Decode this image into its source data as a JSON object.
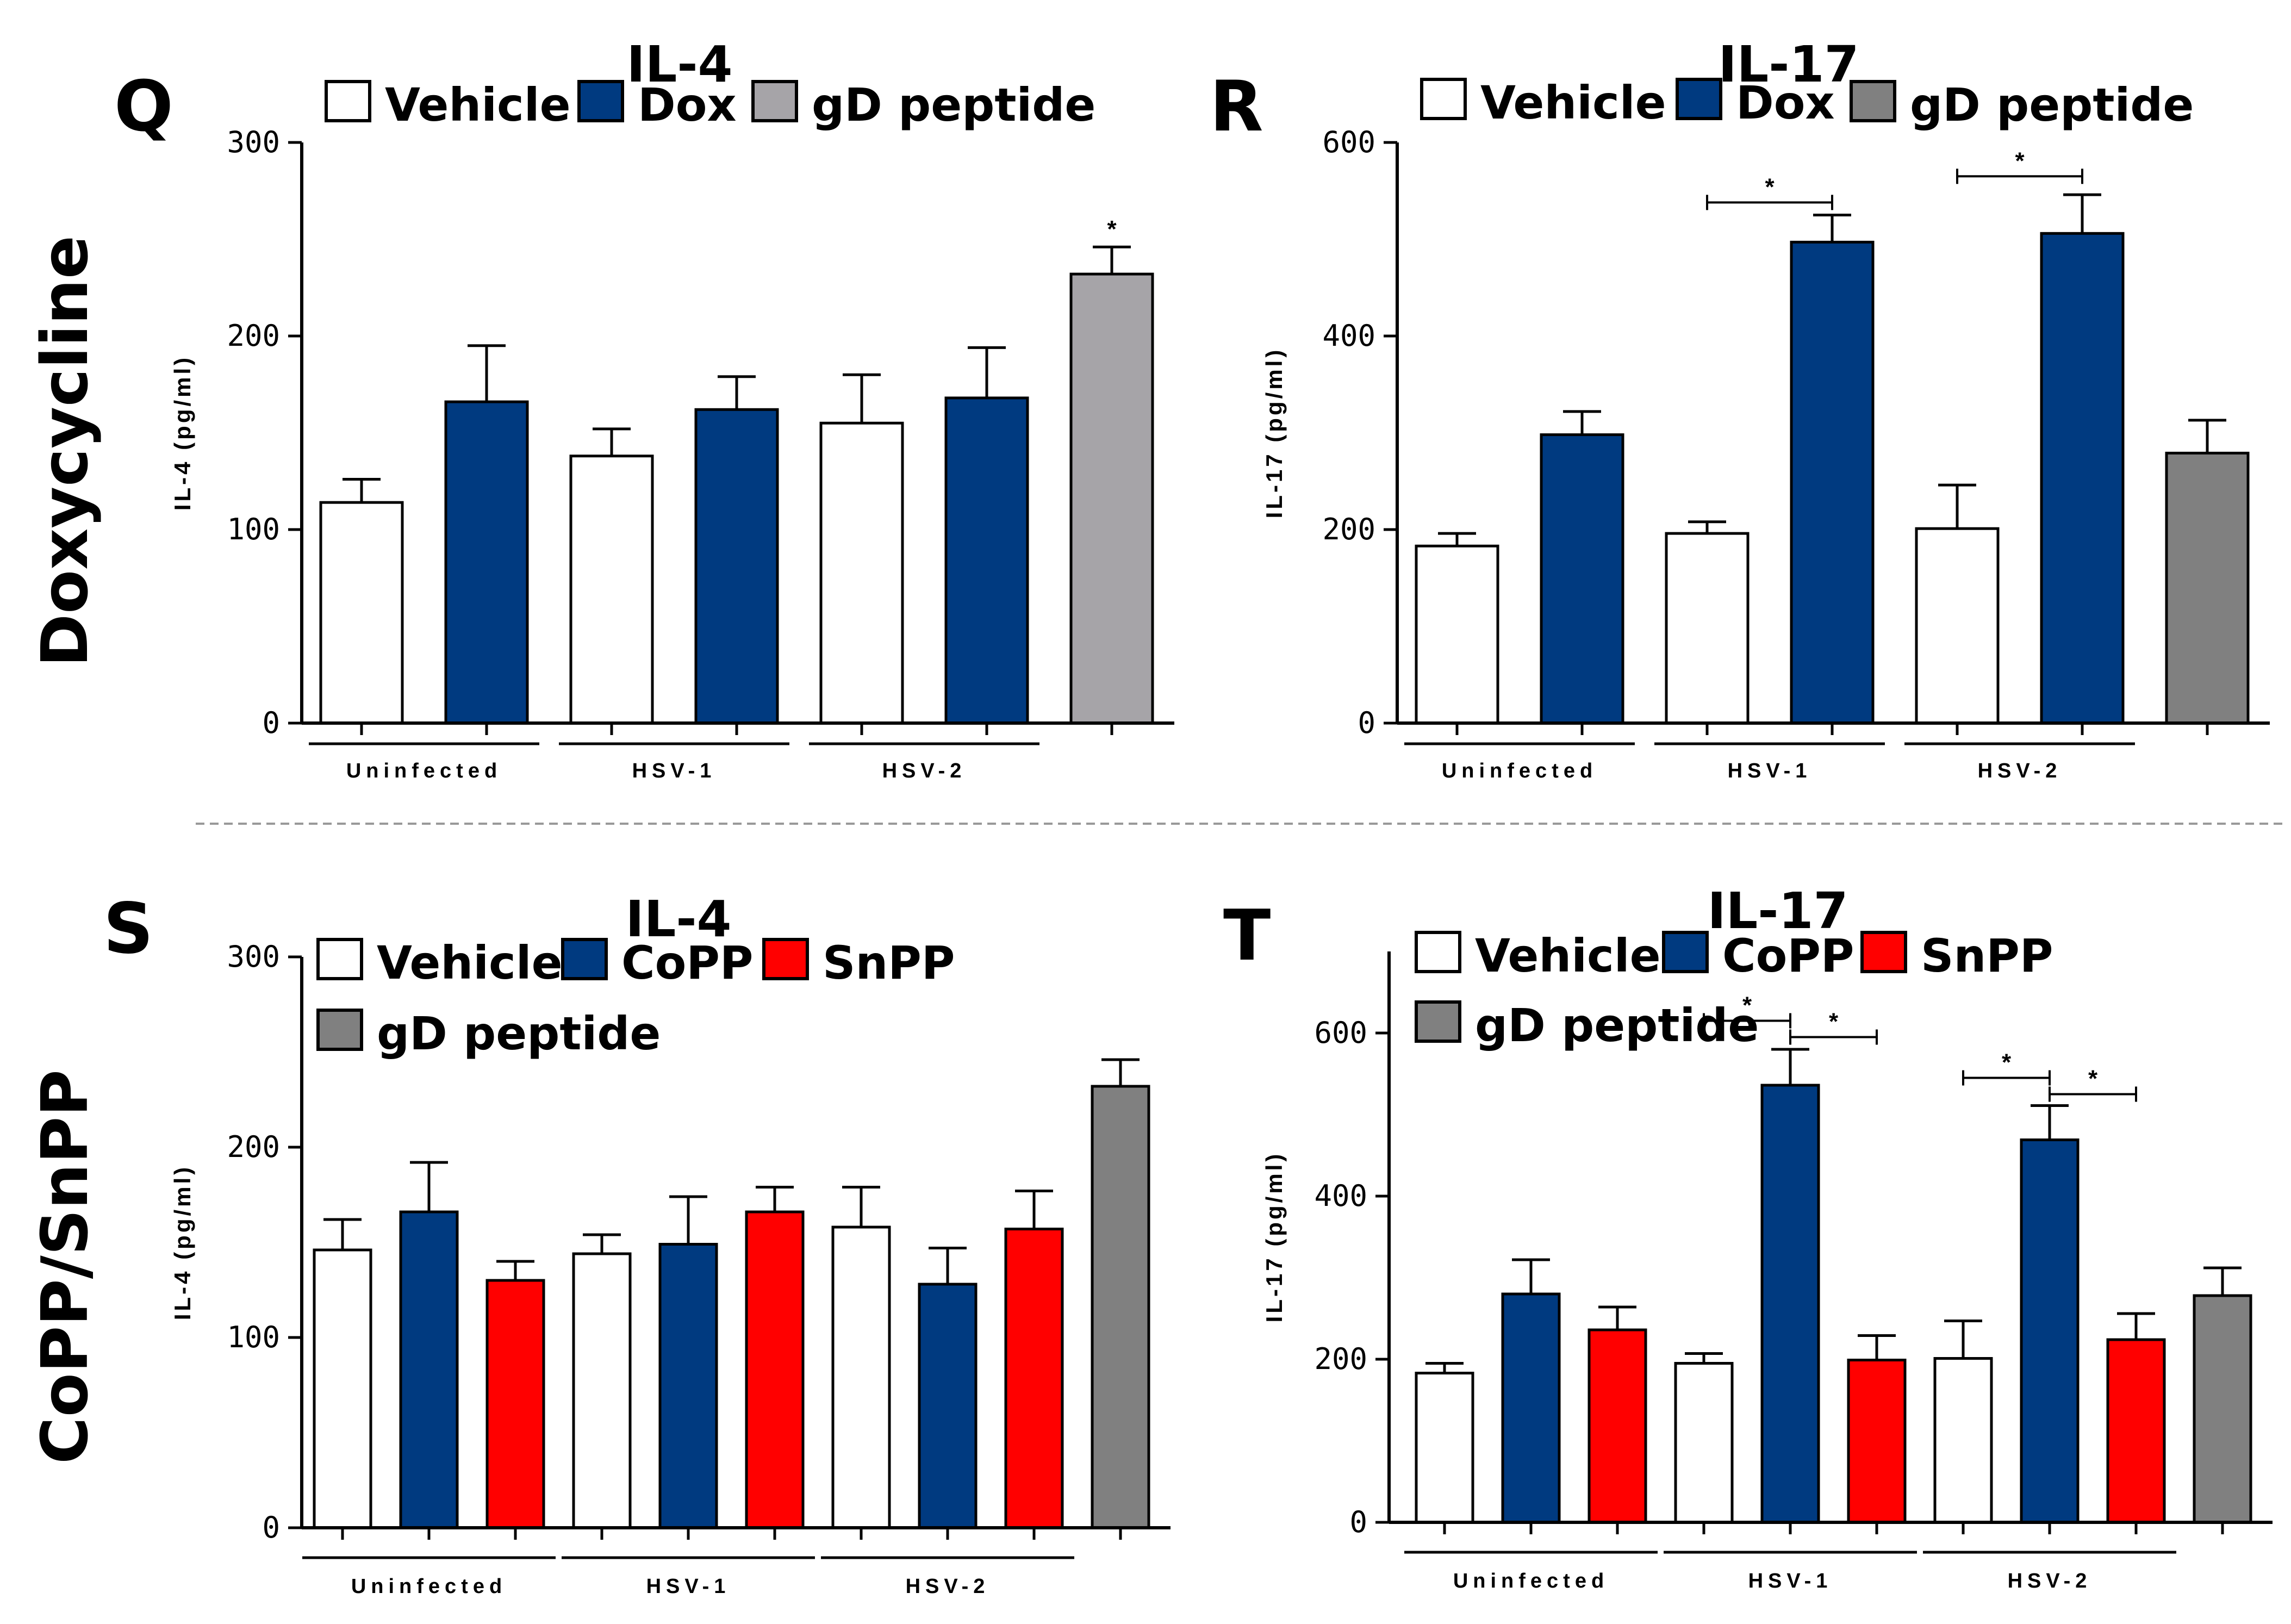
{
  "figure": {
    "row_labels": [
      "Doxycycline",
      "CoPP/SnPP"
    ]
  },
  "colors": {
    "Vehicle": "#ffffff",
    "Dox": "#003a80",
    "CoPP": "#003a80",
    "SnPP": "#ff0000",
    "gD peptide Q": "#a6a4a8",
    "gD peptide": "#808080"
  },
  "chart_data": [
    {
      "panel": "Q",
      "type": "bar",
      "title": "IL-4",
      "ylabel": "IL-4 (pg/ml)",
      "ylim": [
        0,
        300
      ],
      "yticks": [
        0,
        100,
        200,
        300
      ],
      "legend": [
        "Vehicle",
        "Dox",
        "gD peptide"
      ],
      "groups": [
        {
          "label": "Uninfected",
          "bars": [
            {
              "series": "Vehicle",
              "value": 114,
              "error": 12
            },
            {
              "series": "Dox",
              "value": 166,
              "error": 29
            }
          ]
        },
        {
          "label": "HSV-1",
          "bars": [
            {
              "series": "Vehicle",
              "value": 138,
              "error": 14
            },
            {
              "series": "Dox",
              "value": 162,
              "error": 17
            }
          ]
        },
        {
          "label": "HSV-2",
          "bars": [
            {
              "series": "Vehicle",
              "value": 155,
              "error": 25
            },
            {
              "series": "Dox",
              "value": 168,
              "error": 26
            }
          ]
        },
        {
          "label": "",
          "bars": [
            {
              "series": "gD peptide Q",
              "value": 232,
              "error": 14,
              "star": true
            }
          ]
        }
      ],
      "significance": []
    },
    {
      "panel": "R",
      "type": "bar",
      "title": "IL-17",
      "ylabel": "IL-17 (pg/ml)",
      "ylim": [
        0,
        600
      ],
      "yticks": [
        0,
        200,
        400,
        600
      ],
      "legend": [
        "Vehicle",
        "Dox",
        "gD peptide"
      ],
      "groups": [
        {
          "label": "Uninfected",
          "bars": [
            {
              "series": "Vehicle",
              "value": 183,
              "error": 13
            },
            {
              "series": "Dox",
              "value": 298,
              "error": 24
            }
          ]
        },
        {
          "label": "HSV-1",
          "bars": [
            {
              "series": "Vehicle",
              "value": 196,
              "error": 12
            },
            {
              "series": "Dox",
              "value": 497,
              "error": 28
            }
          ]
        },
        {
          "label": "HSV-2",
          "bars": [
            {
              "series": "Vehicle",
              "value": 201,
              "error": 45
            },
            {
              "series": "Dox",
              "value": 506,
              "error": 40
            }
          ]
        },
        {
          "label": "",
          "bars": [
            {
              "series": "gD peptide",
              "value": 279,
              "error": 34
            }
          ]
        }
      ],
      "significance": [
        {
          "from": [
            1,
            0
          ],
          "to": [
            1,
            1
          ],
          "level": 538,
          "text": "*"
        },
        {
          "from": [
            2,
            0
          ],
          "to": [
            2,
            1
          ],
          "level": 565,
          "text": "*"
        }
      ]
    },
    {
      "panel": "S",
      "type": "bar",
      "title": "IL-4",
      "ylabel": "IL-4 (pg/ml)",
      "ylim": [
        0,
        300
      ],
      "yticks": [
        0,
        100,
        200,
        300
      ],
      "legend": [
        "Vehicle",
        "CoPP",
        "SnPP",
        "gD peptide"
      ],
      "groups": [
        {
          "label": "Uninfected",
          "bars": [
            {
              "series": "Vehicle",
              "value": 146,
              "error": 16
            },
            {
              "series": "CoPP",
              "value": 166,
              "error": 26
            },
            {
              "series": "SnPP",
              "value": 130,
              "error": 10
            }
          ]
        },
        {
          "label": "HSV-1",
          "bars": [
            {
              "series": "Vehicle",
              "value": 144,
              "error": 10
            },
            {
              "series": "CoPP",
              "value": 149,
              "error": 25
            },
            {
              "series": "SnPP",
              "value": 166,
              "error": 13
            }
          ]
        },
        {
          "label": "HSV-2",
          "bars": [
            {
              "series": "Vehicle",
              "value": 158,
              "error": 21
            },
            {
              "series": "CoPP",
              "value": 128,
              "error": 19
            },
            {
              "series": "SnPP",
              "value": 157,
              "error": 20
            }
          ]
        },
        {
          "label": "",
          "bars": [
            {
              "series": "gD peptide",
              "value": 232,
              "error": 14
            }
          ]
        }
      ],
      "significance": []
    },
    {
      "panel": "T",
      "type": "bar",
      "title": "IL-17",
      "ylabel": "IL-17 (pg/ml)",
      "ylim": [
        0,
        700
      ],
      "yticks": [
        0,
        200,
        400,
        600
      ],
      "legend": [
        "Vehicle",
        "CoPP",
        "SnPP",
        "gD peptide"
      ],
      "groups": [
        {
          "label": "Uninfected",
          "bars": [
            {
              "series": "Vehicle",
              "value": 183,
              "error": 12
            },
            {
              "series": "CoPP",
              "value": 280,
              "error": 42
            },
            {
              "series": "SnPP",
              "value": 236,
              "error": 28
            }
          ]
        },
        {
          "label": "HSV-1",
          "bars": [
            {
              "series": "Vehicle",
              "value": 195,
              "error": 12
            },
            {
              "series": "CoPP",
              "value": 536,
              "error": 44
            },
            {
              "series": "SnPP",
              "value": 199,
              "error": 30
            }
          ]
        },
        {
          "label": "HSV-2",
          "bars": [
            {
              "series": "Vehicle",
              "value": 201,
              "error": 46
            },
            {
              "series": "CoPP",
              "value": 469,
              "error": 42
            },
            {
              "series": "SnPP",
              "value": 224,
              "error": 32
            }
          ]
        },
        {
          "label": "",
          "bars": [
            {
              "series": "gD peptide",
              "value": 278,
              "error": 34
            }
          ]
        }
      ],
      "significance": [
        {
          "from": [
            1,
            0
          ],
          "to": [
            1,
            1
          ],
          "level": 615,
          "text": "*"
        },
        {
          "from": [
            1,
            1
          ],
          "to": [
            1,
            2
          ],
          "level": 595,
          "text": "*"
        },
        {
          "from": [
            2,
            0
          ],
          "to": [
            2,
            1
          ],
          "level": 545,
          "text": "*"
        },
        {
          "from": [
            2,
            1
          ],
          "to": [
            2,
            2
          ],
          "level": 525,
          "text": "*"
        }
      ]
    }
  ]
}
